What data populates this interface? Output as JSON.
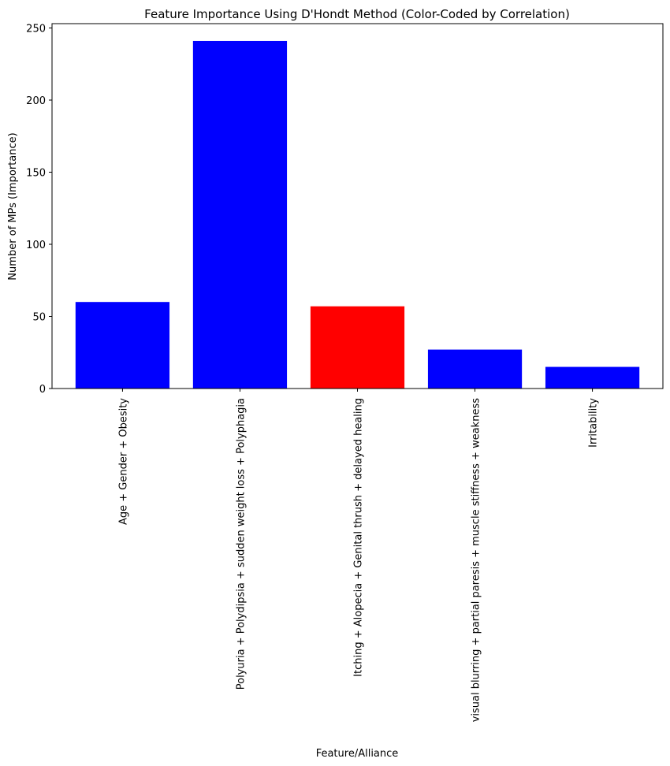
{
  "chart_data": {
    "type": "bar",
    "title": "Feature Importance Using D'Hondt Method (Color-Coded by Correlation)",
    "xlabel": "Feature/Alliance",
    "ylabel": "Number of MPs (Importance)",
    "ylim": [
      0,
      253
    ],
    "yticks": [
      0,
      50,
      100,
      150,
      200,
      250
    ],
    "grid": false,
    "categories": [
      "Age + Gender + Obesity",
      "Polyuria + Polydipsia + sudden weight loss + Polyphagia",
      "Itching + Alopecia + Genital thrush + delayed healing",
      "visual blurring + partial paresis + muscle stiffness + weakness",
      "Irritability"
    ],
    "values": [
      60,
      241,
      57,
      27,
      15
    ],
    "colors": [
      "#0000ff",
      "#0000ff",
      "#ff0000",
      "#0000ff",
      "#0000ff"
    ]
  }
}
